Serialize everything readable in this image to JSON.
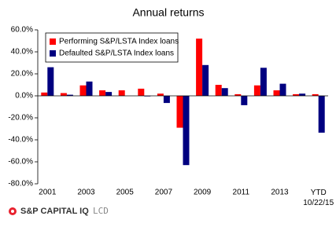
{
  "chart_data": {
    "type": "bar",
    "title": "Annual returns",
    "categories": [
      "2001",
      null,
      "2003",
      null,
      "2005",
      null,
      "2007",
      null,
      "2009",
      null,
      "2011",
      null,
      "2013",
      null,
      "YTD\n10/22/15"
    ],
    "series": [
      {
        "name": "Performing S&P/LSTA Index loans",
        "color": "#ff0000",
        "values": [
          3,
          2.5,
          9.5,
          5,
          5,
          6.5,
          2,
          -29,
          52,
          10,
          1.5,
          9.5,
          5,
          1.5,
          1.5
        ]
      },
      {
        "name": "Defaulted S&P/LSTA Index loans",
        "color": "#000080",
        "values": [
          26,
          1,
          13,
          3.5,
          0,
          -0.5,
          -6.5,
          -63,
          28,
          7,
          -8.5,
          25.5,
          11,
          2,
          -33.5
        ]
      }
    ],
    "ylim": [
      -80,
      60
    ],
    "yticks": [
      {
        "value": -80,
        "label": "-80.0%"
      },
      {
        "value": -60,
        "label": "-60.0%"
      },
      {
        "value": -40,
        "label": "-40.0%"
      },
      {
        "value": -20,
        "label": "-20.0%"
      },
      {
        "value": 0,
        "label": "0.0%"
      },
      {
        "value": 20,
        "label": "20.0%"
      },
      {
        "value": 40,
        "label": "40.0%"
      },
      {
        "value": 60,
        "label": "60.0%"
      }
    ],
    "legend": "top-left",
    "grid": false
  },
  "footer": {
    "brand": "S&P CAPITAL IQ",
    "product": "LCD"
  }
}
